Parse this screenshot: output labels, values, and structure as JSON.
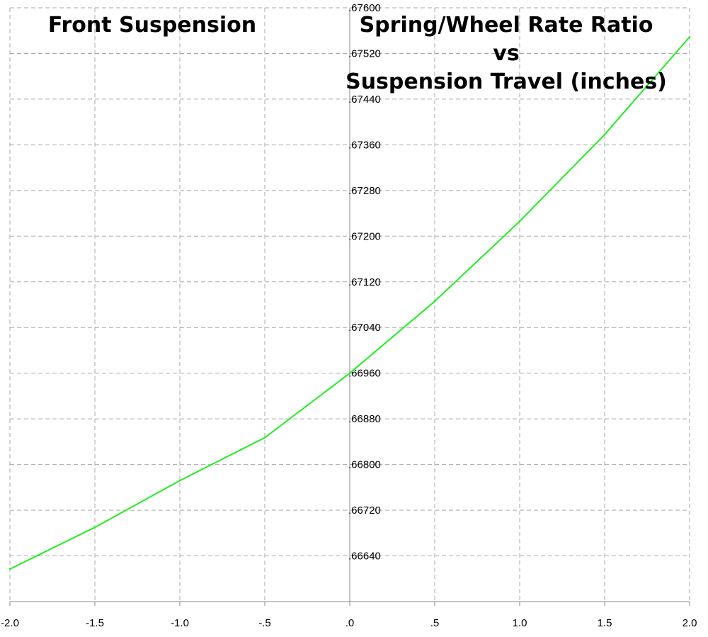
{
  "chart_data": {
    "type": "line",
    "title_left": "Front Suspension",
    "title_right_lines": [
      "Spring/Wheel Rate Ratio",
      "vs",
      "Suspension Travel (inches)"
    ],
    "x_ticks": [
      "-2.0",
      "-1.5",
      "-1.0",
      "-.5",
      ".0",
      ".5",
      "1.0",
      "1.5",
      "2.0"
    ],
    "y_ticks": [
      ".66640",
      ".66720",
      ".66800",
      ".66880",
      ".66960",
      ".67040",
      ".67120",
      ".67200",
      ".67280",
      ".67360",
      ".67440",
      ".67520",
      ".67600"
    ],
    "xlim": [
      -2.0,
      2.0
    ],
    "ylim": [
      0.6656,
      0.676
    ],
    "grid": true,
    "series": [
      {
        "color": "#22ee22",
        "x": [
          -2.0,
          -1.5,
          -1.0,
          -0.5,
          0.0,
          0.5,
          1.0,
          1.5,
          2.0
        ],
        "y": [
          0.66617,
          0.6669,
          0.66772,
          0.66847,
          0.6696,
          0.67086,
          0.67226,
          0.67378,
          0.67549
        ]
      }
    ]
  }
}
